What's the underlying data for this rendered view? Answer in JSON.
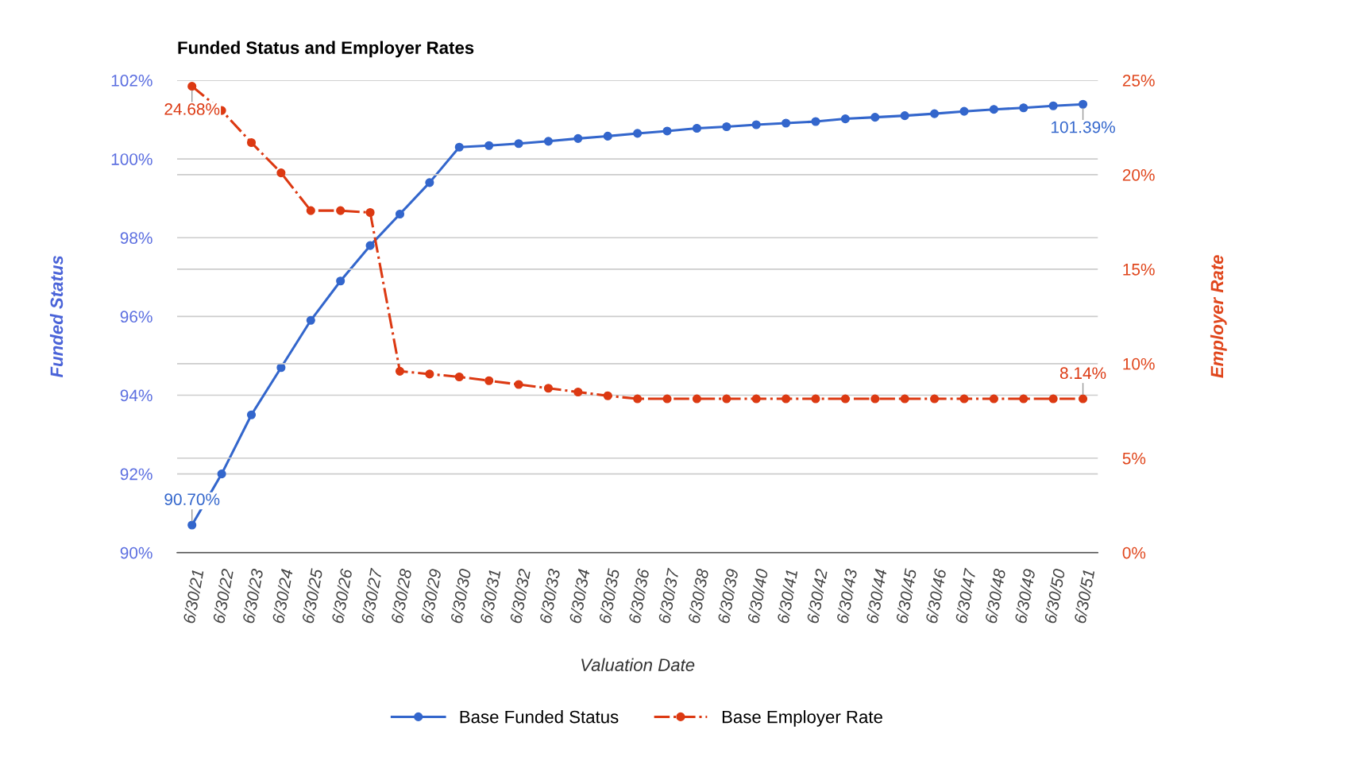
{
  "chart_data": {
    "type": "line",
    "title": "Funded Status and Employer Rates",
    "xlabel": "Valuation Date",
    "ylabel": "Funded Status",
    "y2label": "Employer Rate",
    "categories": [
      "6/30/21",
      "6/30/22",
      "6/30/23",
      "6/30/24",
      "6/30/25",
      "6/30/26",
      "6/30/27",
      "6/30/28",
      "6/30/29",
      "6/30/30",
      "6/30/31",
      "6/30/32",
      "6/30/33",
      "6/30/34",
      "6/30/35",
      "6/30/36",
      "6/30/37",
      "6/30/38",
      "6/30/39",
      "6/30/40",
      "6/30/41",
      "6/30/42",
      "6/30/43",
      "6/30/44",
      "6/30/45",
      "6/30/46",
      "6/30/47",
      "6/30/48",
      "6/30/49",
      "6/30/50",
      "6/30/51"
    ],
    "series": [
      {
        "name": "Base Funded Status",
        "color": "#3366cc",
        "line_style": "solid",
        "values": [
          90.7,
          92.0,
          93.5,
          94.7,
          95.9,
          96.9,
          97.8,
          98.6,
          99.4,
          100.3,
          100.34,
          100.39,
          100.45,
          100.52,
          100.58,
          100.65,
          100.71,
          100.78,
          100.82,
          100.87,
          100.91,
          100.95,
          101.02,
          101.06,
          101.1,
          101.15,
          101.21,
          101.26,
          101.3,
          101.35,
          101.39
        ],
        "value_labels": [
          "90.70%",
          null,
          null,
          null,
          null,
          null,
          null,
          null,
          null,
          null,
          null,
          null,
          null,
          null,
          null,
          null,
          null,
          null,
          null,
          null,
          null,
          null,
          null,
          null,
          null,
          null,
          null,
          null,
          null,
          null,
          "101.39%"
        ]
      },
      {
        "name": "Base Employer Rate",
        "color": "#dc3912",
        "axis": "y2",
        "line_style": "dashdot",
        "values": [
          24.68,
          23.4,
          21.7,
          20.1,
          18.1,
          18.1,
          18.0,
          9.6,
          9.45,
          9.3,
          9.1,
          8.9,
          8.7,
          8.5,
          8.3,
          8.14,
          8.14,
          8.14,
          8.14,
          8.14,
          8.14,
          8.14,
          8.14,
          8.14,
          8.14,
          8.14,
          8.14,
          8.14,
          8.14,
          8.14,
          8.14
        ],
        "value_labels": [
          "24.68%",
          null,
          null,
          null,
          null,
          null,
          null,
          null,
          null,
          null,
          null,
          null,
          null,
          null,
          null,
          null,
          null,
          null,
          null,
          null,
          null,
          null,
          null,
          null,
          null,
          null,
          null,
          null,
          null,
          null,
          "8.14%"
        ]
      }
    ],
    "ylim": [
      90,
      102
    ],
    "yticks": [
      {
        "value": 90,
        "label": "90%"
      },
      {
        "value": 92,
        "label": "92%"
      },
      {
        "value": 94,
        "label": "94%"
      },
      {
        "value": 96,
        "label": "96%"
      },
      {
        "value": 98,
        "label": "98%"
      },
      {
        "value": 100,
        "label": "100%"
      },
      {
        "value": 102,
        "label": "102%"
      }
    ],
    "y2lim": [
      0,
      25
    ],
    "y2ticks": [
      {
        "value": 0,
        "label": "0%"
      },
      {
        "value": 5,
        "label": "5%"
      },
      {
        "value": 10,
        "label": "10%"
      },
      {
        "value": 15,
        "label": "15%"
      },
      {
        "value": 20,
        "label": "20%"
      },
      {
        "value": 25,
        "label": "25%"
      }
    ],
    "grid": true,
    "legend": "bottom",
    "marker": "circle"
  }
}
